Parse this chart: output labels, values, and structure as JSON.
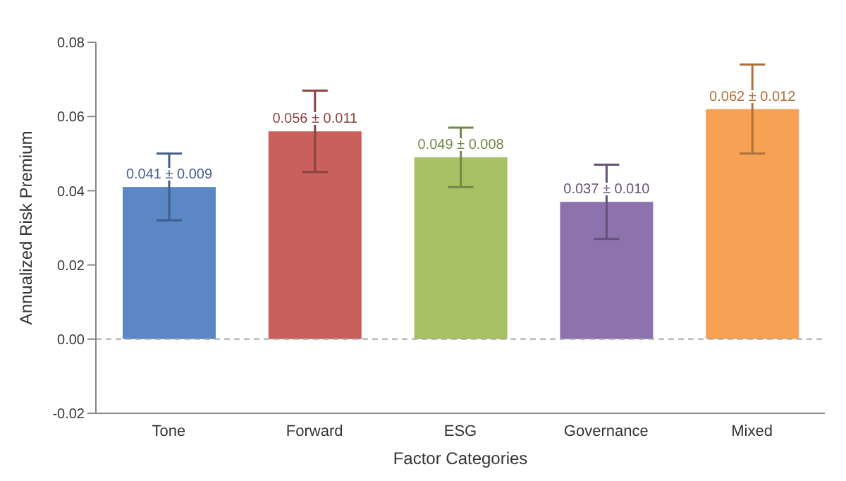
{
  "chart_data": {
    "type": "bar",
    "xlabel": "Factor Categories",
    "ylabel": "Annualized Risk Premium",
    "categories": [
      "Tone",
      "Forward",
      "ESG",
      "Governance",
      "Mixed"
    ],
    "values": [
      0.041,
      0.056,
      0.049,
      0.037,
      0.062
    ],
    "errors": [
      0.009,
      0.011,
      0.008,
      0.01,
      0.012
    ],
    "value_labels": [
      "0.041 ± 0.009",
      "0.056 ± 0.011",
      "0.049 ± 0.008",
      "0.037 ± 0.010",
      "0.062 ± 0.012"
    ],
    "colors": [
      "#5b87c5",
      "#c9605c",
      "#a6c265",
      "#8d73ad",
      "#f7a154"
    ],
    "ylim": [
      -0.02,
      0.08
    ],
    "yticks": [
      {
        "value": -0.02,
        "label": "-0.02"
      },
      {
        "value": 0,
        "label": "0.00"
      },
      {
        "value": 0.02,
        "label": "0.02"
      },
      {
        "value": 0.04,
        "label": "0.04"
      },
      {
        "value": 0.06,
        "label": "0.06"
      },
      {
        "value": 0.08,
        "label": "0.08"
      }
    ],
    "ref_lines": [
      {
        "axis": "y",
        "value": 0,
        "color": "#aaaaaa",
        "line_style": "dashed"
      }
    ],
    "grid": false,
    "legend": false
  }
}
